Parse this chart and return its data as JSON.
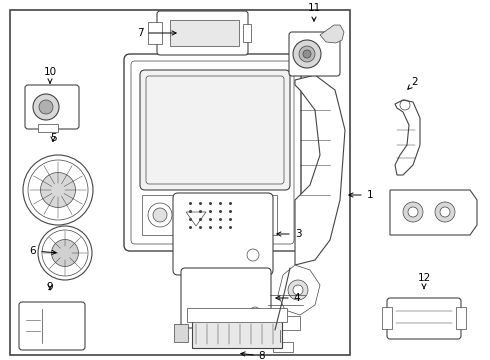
{
  "bg_color": "#ffffff",
  "line_color": "#444444",
  "fig_width": 4.9,
  "fig_height": 3.6,
  "dpi": 100
}
